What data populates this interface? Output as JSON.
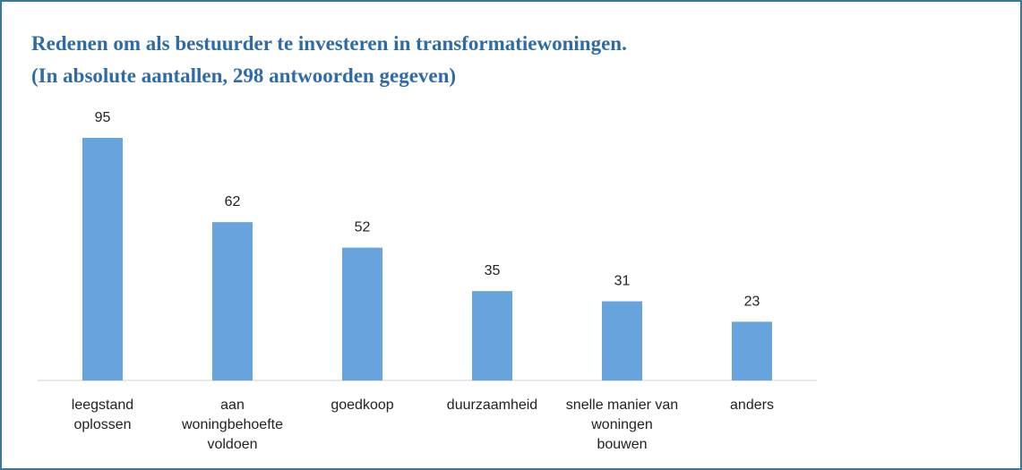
{
  "chart_data": {
    "type": "bar",
    "title": "Redenen om als bestuurder te investeren in transformatiewoningen.",
    "subtitle": "(In absolute aantallen, 298 antwoorden gegeven)",
    "categories": [
      "leegstand oplossen",
      "aan woningbehoefte voldoen",
      "goedkoop",
      "duurzaamheid",
      "snelle manier van woningen bouwen",
      "anders"
    ],
    "values": [
      95,
      62,
      52,
      35,
      31,
      23
    ],
    "color": "#67a3dd"
  }
}
